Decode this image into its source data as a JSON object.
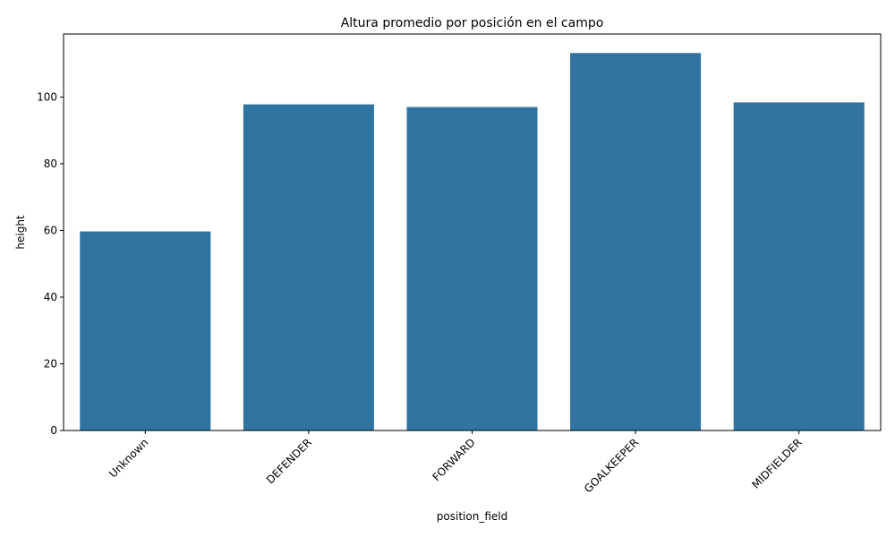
{
  "chart_data": {
    "type": "bar",
    "title": "Altura promedio por posición en el campo",
    "xlabel": "position_field",
    "ylabel": "height",
    "categories": [
      "Unknown",
      "DEFENDER",
      "FORWARD",
      "GOALKEEPER",
      "MIDFIELDER"
    ],
    "values": [
      59.7,
      97.8,
      97.0,
      113.2,
      98.4
    ],
    "ylim": [
      0,
      118.9
    ],
    "yticks": [
      0,
      20,
      40,
      60,
      80,
      100
    ],
    "xtick_rotation": 45,
    "grid": false,
    "legend": "none",
    "bar_color": "#3274a1"
  }
}
